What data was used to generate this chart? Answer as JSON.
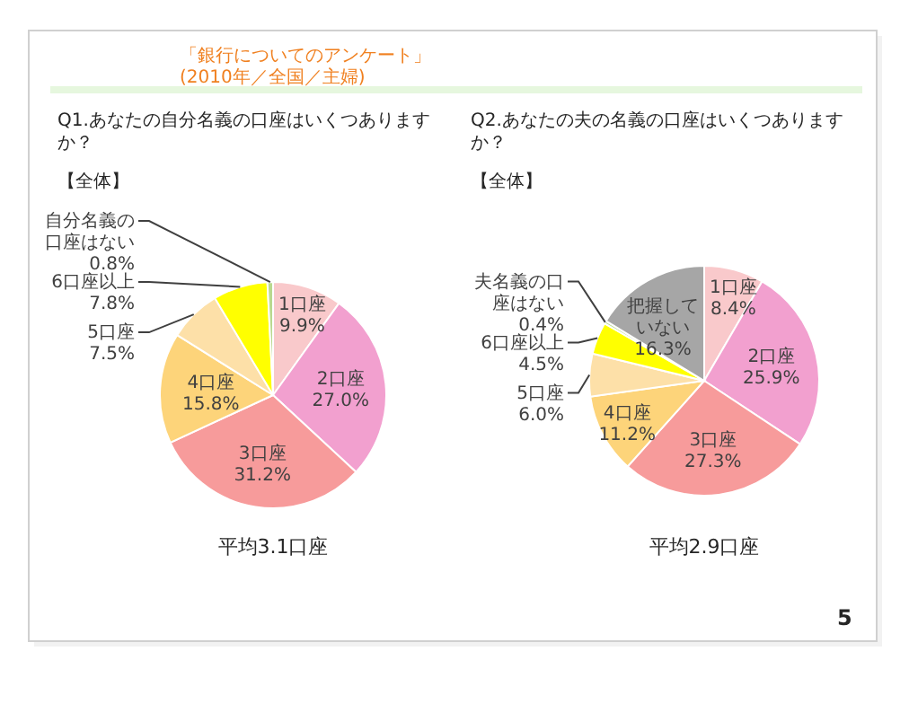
{
  "chart_data": [
    {
      "type": "pie",
      "title": "Q1.あなたの自分名義の口座はいくつありますか？",
      "subtitle": "【全体】",
      "categories": [
        "1口座",
        "2口座",
        "3口座",
        "4口座",
        "5口座",
        "6口座以上",
        "自分名義の口座はない"
      ],
      "values": [
        9.9,
        27.0,
        31.2,
        15.8,
        7.5,
        7.8,
        0.8
      ],
      "value_labels": [
        "9.9%",
        "27.0%",
        "31.2%",
        "15.8%",
        "7.5%",
        "7.8%",
        "0.8%"
      ],
      "colors": [
        "#f9c9cb",
        "#f2a0cf",
        "#f79b9b",
        "#fdd47a",
        "#fde0a8",
        "#ffff00",
        "#b9d98f"
      ],
      "annotations": [
        "「銀行についてのアンケート」",
        "(2010年／全国／主婦)",
        "平均3.1口座"
      ]
    },
    {
      "type": "pie",
      "title": "Q2.あなたの夫の名義の口座はいくつありますか？",
      "subtitle": "【全体】",
      "categories": [
        "1口座",
        "2口座",
        "3口座",
        "4口座",
        "5口座",
        "6口座以上",
        "夫名義の口座はない",
        "把握していない"
      ],
      "values": [
        8.4,
        25.9,
        27.3,
        11.2,
        6.0,
        4.5,
        0.4,
        16.3
      ],
      "value_labels": [
        "8.4%",
        "25.9%",
        "27.3%",
        "11.2%",
        "6.0%",
        "4.5%",
        "0.4%",
        "16.3%"
      ],
      "colors": [
        "#f9c9cb",
        "#f2a0cf",
        "#f79b9b",
        "#fdd47a",
        "#fde0a8",
        "#ffff00",
        "#b9d98f",
        "#a6a6a6"
      ],
      "annotations": [
        "平均2.9口座",
        "5"
      ]
    }
  ]
}
